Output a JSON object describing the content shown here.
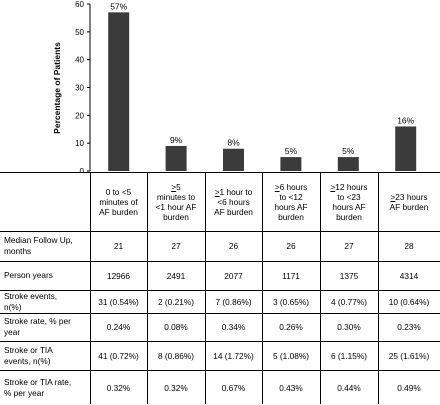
{
  "chart_data": {
    "type": "bar",
    "ylabel": "Percentage of Patients",
    "ylim": [
      0,
      60
    ],
    "yticks": [
      "0",
      "10",
      "20",
      "30",
      "40",
      "50",
      "60"
    ],
    "values": [
      57,
      9,
      8,
      5,
      5,
      16
    ],
    "value_labels": [
      "57%",
      "9%",
      "8%",
      "5%",
      "5%",
      "16%"
    ],
    "bar_color": "#3b3b3b",
    "categories": [
      [
        "0 to <5",
        "minutes of",
        "AF burden"
      ],
      [
        "≥5",
        "minutes to",
        "<1 hour AF",
        "burden"
      ],
      [
        "≥1 hour to",
        "<6 hours",
        "AF burden"
      ],
      [
        "≥6 hours",
        "to <12",
        "hours AF",
        "burden"
      ],
      [
        "≥12 hours",
        "to <23",
        "hours AF",
        "burden"
      ],
      [
        "≥23 hours",
        "AF burden"
      ]
    ]
  },
  "table": {
    "rows": [
      {
        "label": [
          "Median Follow Up,",
          "months"
        ],
        "cells": [
          "21",
          "27",
          "26",
          "26",
          "27",
          "28"
        ]
      },
      {
        "label": [
          "Person years"
        ],
        "cells": [
          "12966",
          "2491",
          "2077",
          "1171",
          "1375",
          "4314"
        ]
      },
      {
        "label": [
          "Stroke events,",
          "n(%)"
        ],
        "cells": [
          "31 (0.54%)",
          "2 (0.21%)",
          "7 (0.86%)",
          "3 (0.65%)",
          "4 (0.77%)",
          "10 (0.64%)"
        ]
      },
      {
        "label": [
          "Stroke rate, % per",
          "year"
        ],
        "cells": [
          "0.24%",
          "0.08%",
          "0.34%",
          "0.26%",
          "0.30%",
          "0.23%"
        ]
      },
      {
        "label": [
          "Stroke or TIA",
          "events, n(%)"
        ],
        "cells": [
          "41 (0.72%)",
          "8 (0.86%)",
          "14 (1.72%)",
          "5 (1.08%)",
          "6 (1.15%)",
          "25 (1.61%)"
        ]
      },
      {
        "label": [
          "Stroke or TIA rate,",
          "% per year"
        ],
        "cells": [
          "0.32%",
          "0.32%",
          "0.67%",
          "0.43%",
          "0.44%",
          "0.49%"
        ]
      }
    ]
  }
}
